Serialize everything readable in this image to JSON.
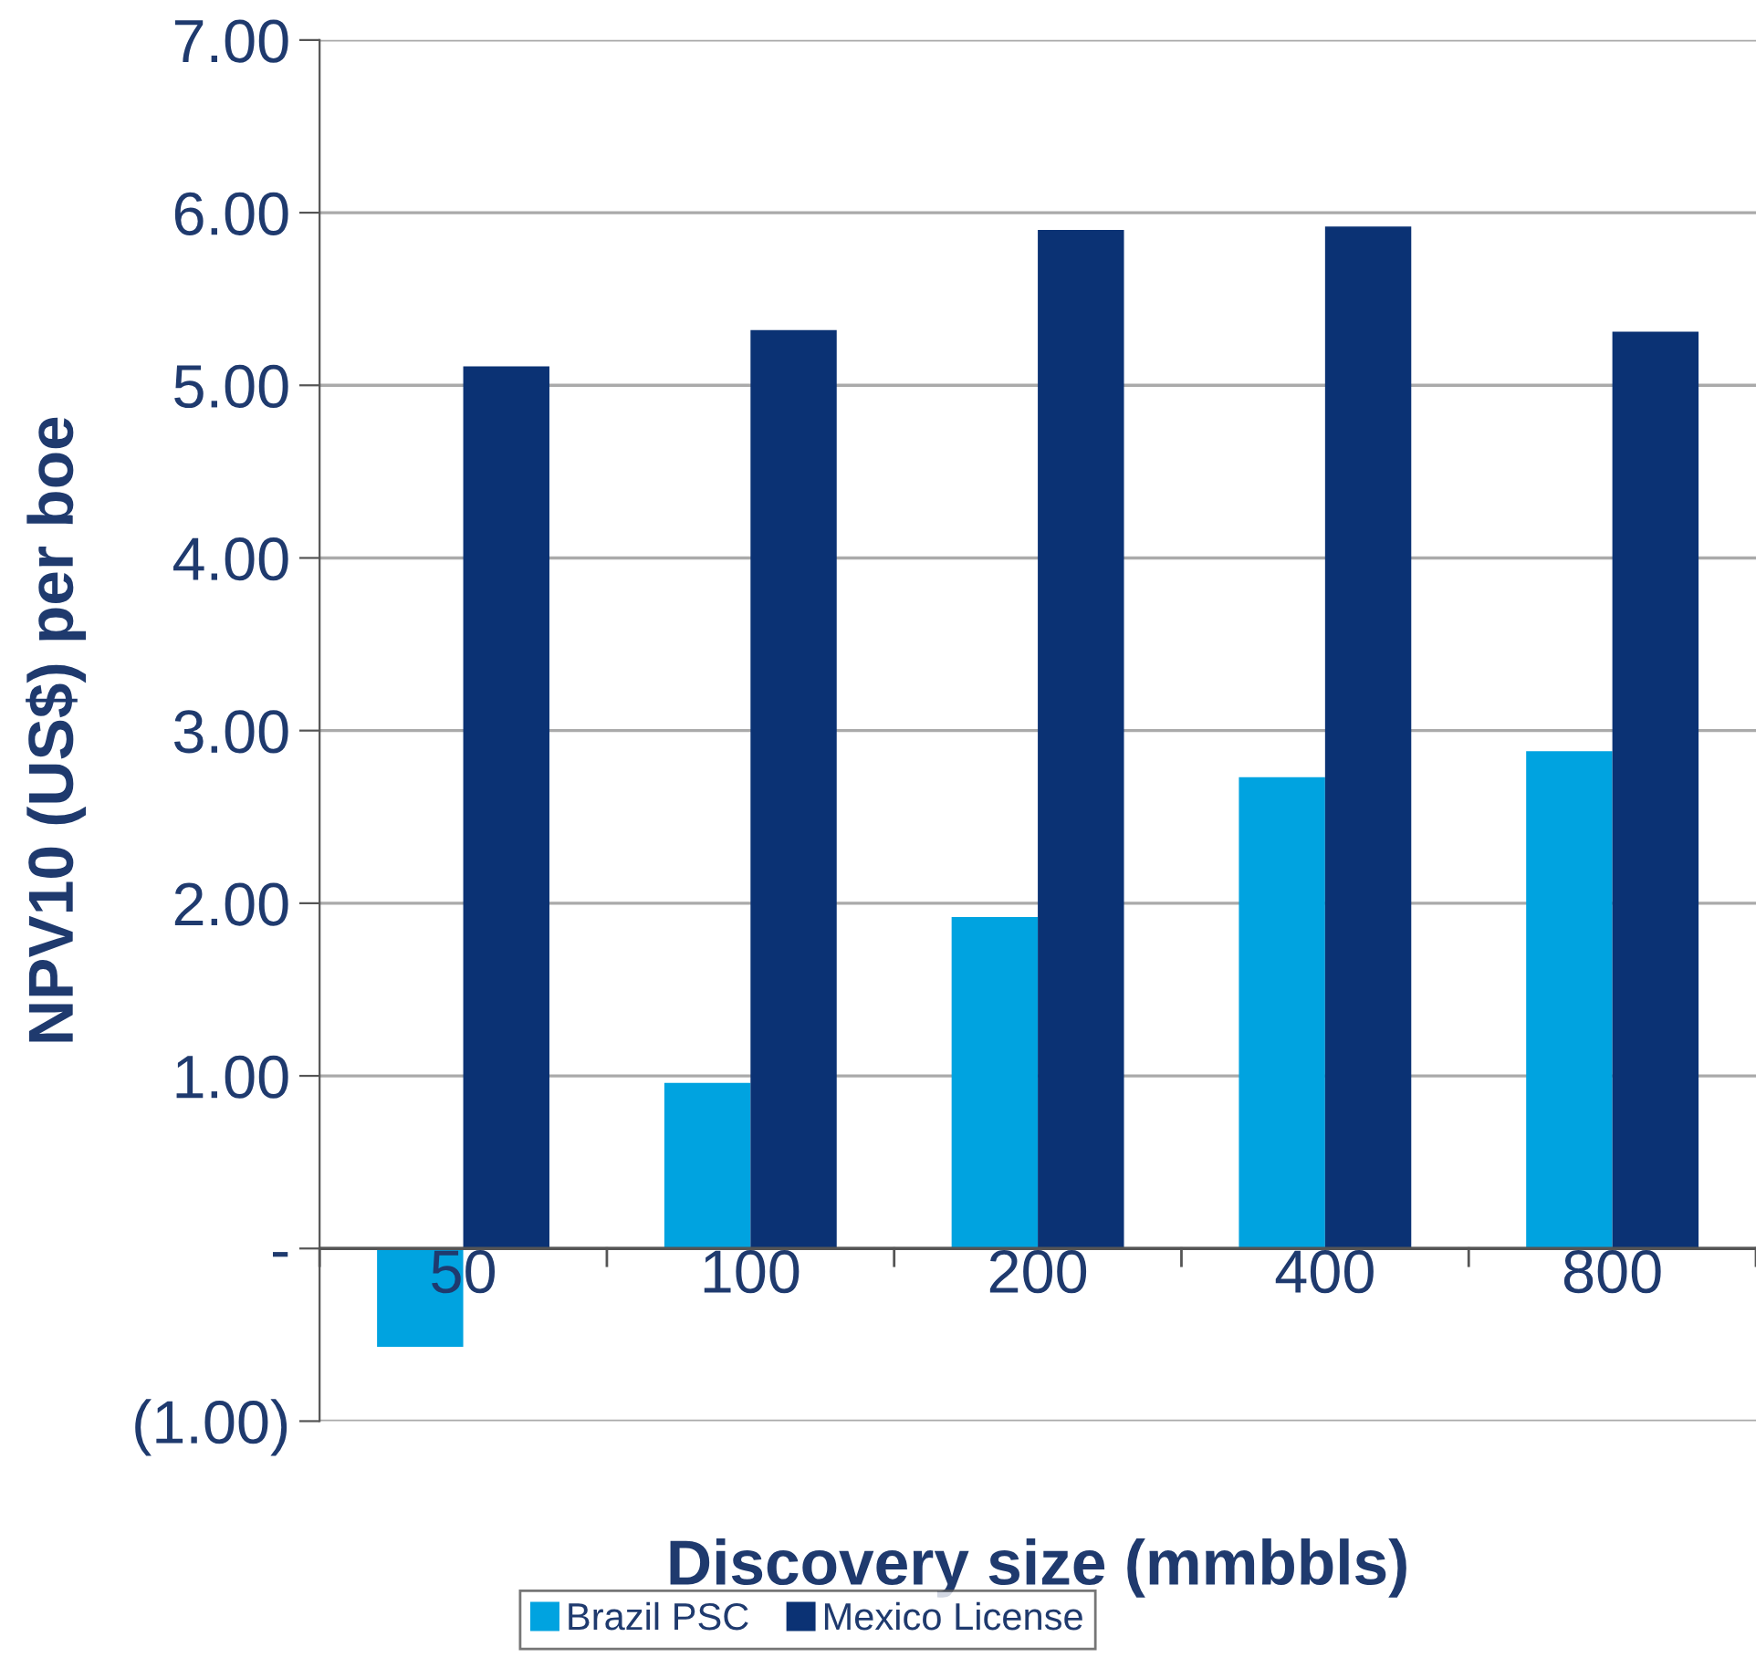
{
  "chart_data": {
    "type": "bar",
    "xlabel": "Discovery size (mmbbls)",
    "ylabel": "NPV10 (US$) per boe",
    "categories": [
      "50",
      "100",
      "200",
      "400",
      "800"
    ],
    "series": [
      {
        "name": "Brazil PSC",
        "color": "#00a3e0",
        "values": [
          -0.57,
          0.96,
          1.92,
          2.73,
          2.88
        ]
      },
      {
        "name": "Mexico License",
        "color": "#0b3274",
        "values": [
          5.11,
          5.32,
          5.9,
          5.92,
          5.31
        ]
      }
    ],
    "ylim": [
      -1,
      7
    ],
    "yticks": [
      {
        "value": -1,
        "label": "(1.00)"
      },
      {
        "value": 0,
        "label": "-"
      },
      {
        "value": 1,
        "label": "1.00"
      },
      {
        "value": 2,
        "label": "2.00"
      },
      {
        "value": 3,
        "label": "3.00"
      },
      {
        "value": 4,
        "label": "4.00"
      },
      {
        "value": 5,
        "label": "5.00"
      },
      {
        "value": 6,
        "label": "6.00"
      },
      {
        "value": 7,
        "label": "7.00"
      }
    ],
    "grid": "y",
    "legend": "bottom"
  }
}
